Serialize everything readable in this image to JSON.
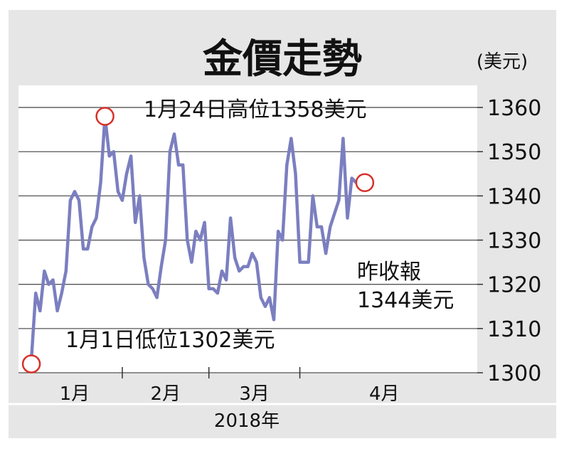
{
  "chart_data": {
    "type": "line",
    "title": "金價走勢",
    "unit_label": "(美元)",
    "year_label": "2018年",
    "ylim": [
      1300,
      1365
    ],
    "y_ticks": [
      "1300",
      "1310",
      "1320",
      "1330",
      "1340",
      "1350",
      "1360"
    ],
    "x_ticks": [
      "1月",
      "2月",
      "3月",
      "4月"
    ],
    "x_range": [
      1,
      103
    ],
    "month_boundaries": [
      23,
      43,
      64
    ],
    "series": [
      {
        "color": "#7b7fc0",
        "values": [
          [
            1,
            1303
          ],
          [
            2,
            1303
          ],
          [
            3,
            1318
          ],
          [
            4,
            1314
          ],
          [
            5,
            1323
          ],
          [
            6,
            1320
          ],
          [
            7,
            1321
          ],
          [
            8,
            1314
          ],
          [
            9,
            1318
          ],
          [
            10,
            1323
          ],
          [
            11,
            1339
          ],
          [
            12,
            1341
          ],
          [
            13,
            1339
          ],
          [
            14,
            1328
          ],
          [
            15,
            1328
          ],
          [
            16,
            1333
          ],
          [
            17,
            1335
          ],
          [
            18,
            1343
          ],
          [
            19,
            1358
          ],
          [
            20,
            1349
          ],
          [
            21,
            1350
          ],
          [
            22,
            1341
          ],
          [
            23,
            1339
          ],
          [
            24,
            1345
          ],
          [
            25,
            1349
          ],
          [
            26,
            1334
          ],
          [
            27,
            1340
          ],
          [
            28,
            1326
          ],
          [
            29,
            1320
          ],
          [
            30,
            1319
          ],
          [
            31,
            1317
          ],
          [
            32,
            1324
          ],
          [
            33,
            1330
          ],
          [
            34,
            1350
          ],
          [
            35,
            1354
          ],
          [
            36,
            1347
          ],
          [
            37,
            1347
          ],
          [
            38,
            1330
          ],
          [
            39,
            1325
          ],
          [
            40,
            1332
          ],
          [
            41,
            1330
          ],
          [
            42,
            1334
          ],
          [
            43,
            1319
          ],
          [
            44,
            1319
          ],
          [
            45,
            1318
          ],
          [
            46,
            1323
          ],
          [
            47,
            1321
          ],
          [
            48,
            1335
          ],
          [
            49,
            1326
          ],
          [
            50,
            1323
          ],
          [
            51,
            1324
          ],
          [
            52,
            1324
          ],
          [
            53,
            1327
          ],
          [
            54,
            1325
          ],
          [
            55,
            1317
          ],
          [
            56,
            1315
          ],
          [
            57,
            1317
          ],
          [
            58,
            1312
          ],
          [
            59,
            1332
          ],
          [
            60,
            1330
          ],
          [
            61,
            1347
          ],
          [
            62,
            1353
          ],
          [
            63,
            1345
          ],
          [
            64,
            1325
          ],
          [
            65,
            1325
          ],
          [
            66,
            1325
          ],
          [
            67,
            1340
          ],
          [
            68,
            1333
          ],
          [
            69,
            1333
          ],
          [
            70,
            1327
          ],
          [
            71,
            1333
          ],
          [
            72,
            1336
          ],
          [
            73,
            1339
          ],
          [
            74,
            1353
          ],
          [
            75,
            1335
          ],
          [
            76,
            1344
          ],
          [
            77,
            1343
          ]
        ]
      }
    ],
    "annotations": [
      {
        "x": 19,
        "y": 1358,
        "text": "1月24日高位1358美元",
        "marker": "red-circle"
      },
      {
        "x": 2,
        "y": 1302,
        "text": "1月1日低位1302美元",
        "marker": "red-circle"
      },
      {
        "x": 79,
        "y": 1343,
        "line1": "昨收報",
        "line2": "1344美元",
        "marker": "red-circle"
      }
    ],
    "grid": true,
    "marker_color": "#d7312a"
  }
}
